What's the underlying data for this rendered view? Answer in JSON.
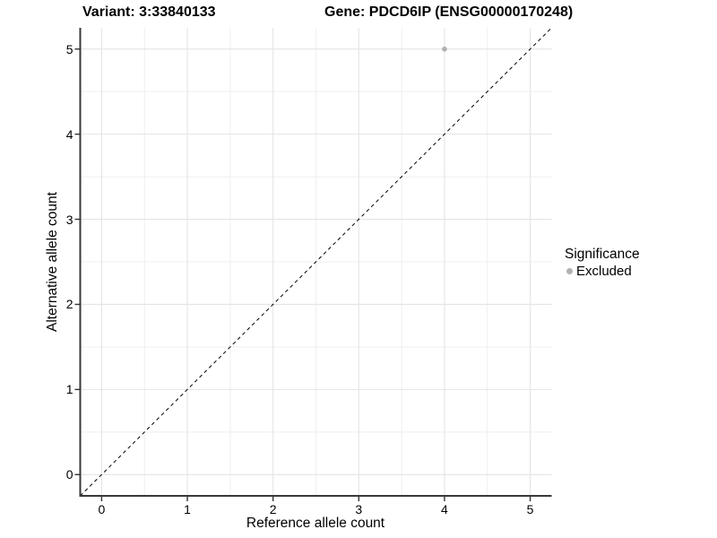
{
  "chart_data": {
    "type": "scatter",
    "title_left": "Variant: 3:33840133",
    "title_right": "Gene: PDCD6IP (ENSG00000170248)",
    "xlabel": "Reference allele count",
    "ylabel": "Alternative allele count",
    "xlim": [
      -0.25,
      5.25
    ],
    "ylim": [
      -0.25,
      5.25
    ],
    "xticks": [
      0,
      1,
      2,
      3,
      4,
      5
    ],
    "yticks": [
      0,
      1,
      2,
      3,
      4,
      5
    ],
    "xminor": [
      0.5,
      1.5,
      2.5,
      3.5,
      4.5
    ],
    "yminor": [
      0.5,
      1.5,
      2.5,
      3.5,
      4.5
    ],
    "grid": "major+minor",
    "reference_line": {
      "type": "identity",
      "style": "dashed",
      "color": "#000000"
    },
    "series": [
      {
        "name": "Excluded",
        "color": "#b1b1b1",
        "points": [
          {
            "x": 4,
            "y": 5
          }
        ]
      }
    ],
    "legend": {
      "title": "Significance",
      "position": "right",
      "items": [
        {
          "label": "Excluded",
          "color": "#b1b1b1"
        }
      ]
    }
  },
  "colors": {
    "background": "#ffffff",
    "grid_major": "#e4e4e4",
    "grid_minor": "#efefef",
    "axis_line": "#383838",
    "tick_mark": "#333333",
    "text": "#000000",
    "point_gray": "#b1b1b1"
  }
}
